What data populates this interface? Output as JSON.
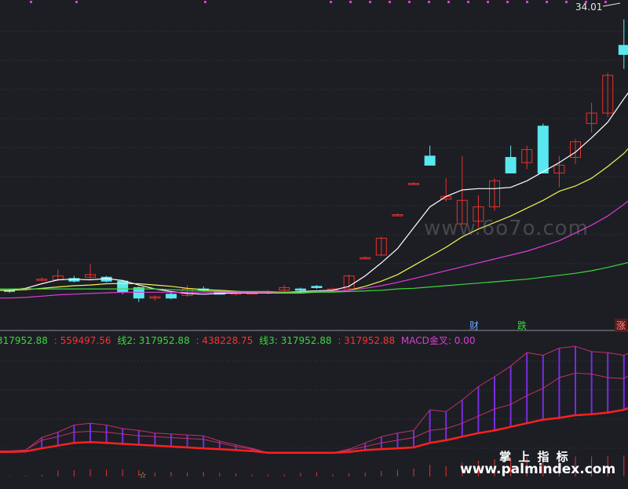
{
  "colors": {
    "background": "#1c1e24",
    "up": "#e8302c",
    "down": "#59e8f0",
    "ma1": "#ffffff",
    "ma2": "#f2f25a",
    "ma3": "#e03ad8",
    "ma4": "#3cd83c",
    "macd_band": "#7a2be2",
    "macd_line": "#ff2020"
  },
  "header": {
    "price_label": "34.01"
  },
  "event_tags": [
    {
      "label": "财",
      "color": "#6aa8ff"
    },
    {
      "label": "跌",
      "color": "#3cd83c"
    },
    {
      "label": "涨",
      "color": "#ff8888"
    }
  ],
  "legend": [
    {
      "text": "317952.88",
      "color": "#3cd83c"
    },
    {
      "text": ": 559497.56",
      "color": "#ff3030"
    },
    {
      "text": "线2: 317952.88",
      "color": "#3cd83c"
    },
    {
      "text": ": 438228.75",
      "color": "#ff3030"
    },
    {
      "text": "线3: 317952.88",
      "color": "#3cd83c"
    },
    {
      "text": ": 317952.88",
      "color": "#ff3030"
    },
    {
      "text": "MACD金叉: 0.00",
      "color": "#e03ad8"
    }
  ],
  "watermarks": {
    "top": "www.6o7o.com",
    "cn": "掌 上 指 标",
    "bottom": "www.palmindex.com"
  },
  "chart_data": [
    {
      "type": "candlestick",
      "candles": [
        {
          "o": 13.2,
          "h": 13.3,
          "l": 13.0,
          "c": 13.15
        },
        {
          "o": 13.3,
          "h": 13.4,
          "l": 13.2,
          "c": 13.35
        },
        {
          "o": 14.0,
          "h": 14.2,
          "l": 13.9,
          "c": 14.05
        },
        {
          "o": 14.0,
          "h": 14.8,
          "l": 13.9,
          "c": 14.3
        },
        {
          "o": 14.1,
          "h": 14.3,
          "l": 13.8,
          "c": 13.9
        },
        {
          "o": 14.2,
          "h": 15.2,
          "l": 14.0,
          "c": 14.4
        },
        {
          "o": 14.2,
          "h": 14.3,
          "l": 13.8,
          "c": 13.9
        },
        {
          "o": 13.9,
          "h": 14.0,
          "l": 12.9,
          "c": 13.1
        },
        {
          "o": 13.4,
          "h": 13.5,
          "l": 12.3,
          "c": 12.6
        },
        {
          "o": 12.6,
          "h": 12.8,
          "l": 12.4,
          "c": 12.7
        },
        {
          "o": 12.9,
          "h": 13.1,
          "l": 12.5,
          "c": 12.6
        },
        {
          "o": 12.8,
          "h": 13.6,
          "l": 12.7,
          "c": 13.3
        },
        {
          "o": 13.3,
          "h": 13.5,
          "l": 13.1,
          "c": 13.2
        },
        {
          "o": 13.1,
          "h": 13.2,
          "l": 12.9,
          "c": 12.9
        },
        {
          "o": 12.9,
          "h": 13.1,
          "l": 12.8,
          "c": 13.0
        },
        {
          "o": 13.0,
          "h": 13.1,
          "l": 12.9,
          "c": 13.0
        },
        {
          "o": 13.0,
          "h": 13.2,
          "l": 12.9,
          "c": 13.1
        },
        {
          "o": 13.2,
          "h": 13.6,
          "l": 13.1,
          "c": 13.4
        },
        {
          "o": 13.3,
          "h": 13.4,
          "l": 13.1,
          "c": 13.2
        },
        {
          "o": 13.5,
          "h": 13.6,
          "l": 13.3,
          "c": 13.4
        },
        {
          "o": 13.3,
          "h": 13.4,
          "l": 13.2,
          "c": 13.3
        },
        {
          "o": 13.3,
          "h": 14.4,
          "l": 13.2,
          "c": 14.3
        },
        {
          "o": 15.7,
          "h": 15.8,
          "l": 15.6,
          "c": 15.7
        },
        {
          "o": 15.9,
          "h": 17.3,
          "l": 15.8,
          "c": 17.2
        },
        {
          "o": 19.0,
          "h": 19.1,
          "l": 18.9,
          "c": 19.0
        },
        {
          "o": 21.4,
          "h": 21.5,
          "l": 21.3,
          "c": 21.4
        },
        {
          "o": 23.5,
          "h": 24.3,
          "l": 22.8,
          "c": 22.8
        },
        {
          "o": 20.2,
          "h": 21.8,
          "l": 20.0,
          "c": 20.4
        },
        {
          "o": 18.3,
          "h": 23.5,
          "l": 18.3,
          "c": 20.1
        },
        {
          "o": 18.5,
          "h": 20.5,
          "l": 18.0,
          "c": 19.6
        },
        {
          "o": 19.6,
          "h": 21.8,
          "l": 19.3,
          "c": 21.6
        },
        {
          "o": 23.4,
          "h": 24.3,
          "l": 22.2,
          "c": 22.2
        },
        {
          "o": 23.0,
          "h": 24.3,
          "l": 22.5,
          "c": 24.0
        },
        {
          "o": 25.8,
          "h": 26.0,
          "l": 22.2,
          "c": 22.2
        },
        {
          "o": 22.2,
          "h": 23.5,
          "l": 21.1,
          "c": 22.8
        },
        {
          "o": 23.4,
          "h": 24.8,
          "l": 22.9,
          "c": 24.6
        },
        {
          "o": 26.0,
          "h": 27.6,
          "l": 25.3,
          "c": 26.8
        },
        {
          "o": 26.8,
          "h": 29.9,
          "l": 26.5,
          "c": 29.7
        },
        {
          "o": 32.0,
          "h": 34.0,
          "l": 30.2,
          "c": 31.3
        },
        {
          "o": 32.0,
          "h": 34.4,
          "l": 31.8,
          "c": 34.0
        }
      ],
      "moving_averages": {
        "ma1": [
          13.2,
          13.35,
          13.7,
          14.0,
          14.05,
          14.0,
          14.1,
          13.95,
          13.6,
          13.3,
          13.1,
          12.95,
          12.9,
          12.95,
          13.0,
          13.0,
          13.0,
          13.05,
          13.1,
          13.15,
          13.2,
          13.5,
          14.3,
          15.3,
          16.4,
          18.0,
          19.6,
          20.4,
          20.9,
          21.0,
          21.0,
          21.1,
          21.6,
          22.3,
          23.0,
          23.8,
          24.9,
          26.1,
          27.9,
          29.6
        ],
        "ma2": [
          13.2,
          13.25,
          13.35,
          13.45,
          13.55,
          13.6,
          13.7,
          13.72,
          13.7,
          13.6,
          13.5,
          13.35,
          13.25,
          13.2,
          13.12,
          13.05,
          13.0,
          13.0,
          13.0,
          13.05,
          13.1,
          13.2,
          13.5,
          13.9,
          14.4,
          15.1,
          15.8,
          16.5,
          17.3,
          17.9,
          18.4,
          18.9,
          19.5,
          20.1,
          20.8,
          21.2,
          21.8,
          22.7,
          23.7,
          25.1
        ],
        "ma3": [
          12.6,
          12.65,
          12.75,
          12.85,
          12.9,
          12.95,
          13.0,
          13.05,
          13.05,
          13.05,
          13.05,
          13.05,
          13.05,
          13.05,
          13.05,
          13.05,
          13.05,
          13.05,
          13.05,
          13.1,
          13.1,
          13.2,
          13.35,
          13.55,
          13.8,
          14.1,
          14.4,
          14.7,
          15.0,
          15.3,
          15.6,
          15.9,
          16.2,
          16.6,
          17.0,
          17.6,
          18.2,
          18.9,
          19.8,
          20.8
        ],
        "ma4": [
          13.3,
          13.3,
          13.3,
          13.3,
          13.3,
          13.3,
          13.3,
          13.3,
          13.3,
          13.3,
          13.25,
          13.2,
          13.15,
          13.1,
          13.1,
          13.1,
          13.1,
          13.05,
          13.05,
          13.05,
          13.05,
          13.1,
          13.15,
          13.2,
          13.3,
          13.35,
          13.45,
          13.55,
          13.65,
          13.75,
          13.85,
          13.95,
          14.05,
          14.2,
          14.35,
          14.5,
          14.7,
          14.95,
          15.25,
          15.55
        ]
      }
    },
    {
      "type": "area",
      "series": [
        {
          "values": [
            0.3,
            0.4,
            1.8,
            2.4,
            3.2,
            3.4,
            3.2,
            2.8,
            2.6,
            2.3,
            2.2,
            2.1,
            2.0,
            1.4,
            1.0,
            0.6,
            0.1,
            0.1,
            0.1,
            0.1,
            0.1,
            0.5,
            1.2,
            1.9,
            2.3,
            2.6,
            4.9,
            4.7,
            6.0,
            7.5,
            8.6,
            9.8,
            11.3,
            11.0,
            11.8,
            12.0,
            11.4,
            11.3,
            11.0,
            11.8
          ]
        },
        {
          "values": [
            0.3,
            0.4,
            1.5,
            1.9,
            2.4,
            2.5,
            2.4,
            2.2,
            2.0,
            1.9,
            1.8,
            1.7,
            1.6,
            1.2,
            0.8,
            0.5,
            0.1,
            0.1,
            0.1,
            0.1,
            0.1,
            0.4,
            0.8,
            1.2,
            1.5,
            1.8,
            2.6,
            2.8,
            3.4,
            4.2,
            5.0,
            5.5,
            6.5,
            7.3,
            8.5,
            9.0,
            8.9,
            8.5,
            8.4,
            9.5
          ]
        },
        {
          "values": [
            0.2,
            0.25,
            0.6,
            0.9,
            1.2,
            1.3,
            1.2,
            1.1,
            1.0,
            0.9,
            0.8,
            0.7,
            0.6,
            0.5,
            0.4,
            0.3,
            0.1,
            0.1,
            0.1,
            0.1,
            0.1,
            0.2,
            0.4,
            0.5,
            0.6,
            0.7,
            1.2,
            1.5,
            1.9,
            2.3,
            2.6,
            3.0,
            3.4,
            3.8,
            4.0,
            4.3,
            4.4,
            4.6,
            4.9,
            5.6
          ]
        }
      ],
      "bars": [
        0.1,
        0.2,
        0.4,
        1.5,
        1.6,
        1.8,
        1.7,
        1.8,
        1.6,
        1.0,
        1.2,
        1.0,
        1.2,
        0.9,
        0.8,
        0.5,
        0.5,
        0.5,
        0.9,
        1.1,
        0.5,
        0.8,
        1.0,
        1.4,
        1.7,
        2.0,
        3.0,
        2.6,
        3.5,
        4.0,
        4.4,
        4.8,
        4.9,
        5.0,
        5.0,
        5.1,
        5.1,
        5.2,
        5.3,
        5.4
      ]
    }
  ]
}
